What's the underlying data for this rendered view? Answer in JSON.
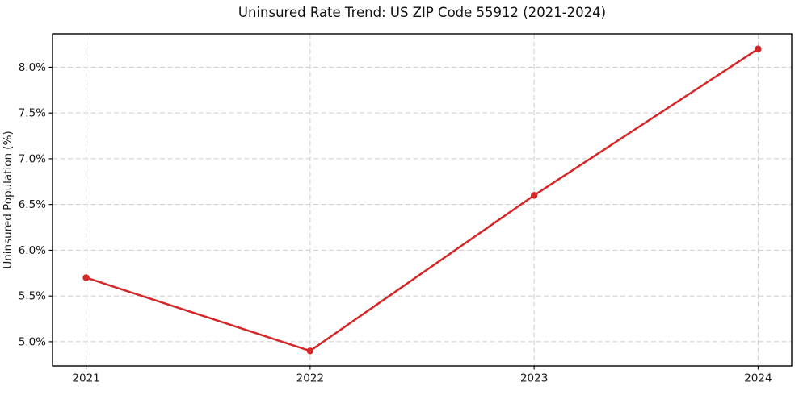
{
  "chart_data": {
    "type": "line",
    "title": "Uninsured Rate Trend: US ZIP Code 55912 (2021-2024)",
    "xlabel": "",
    "ylabel": "Uninsured Population (%)",
    "x": [
      2021,
      2022,
      2023,
      2024
    ],
    "series": [
      {
        "name": "Uninsured rate",
        "values": [
          5.7,
          4.9,
          6.6,
          8.2
        ],
        "color": "#d62728",
        "line_width": 2.5,
        "marker": "circle",
        "marker_radius": 4.2
      }
    ],
    "xtick_labels": [
      "2021",
      "2022",
      "2023",
      "2024"
    ],
    "ytick_values": [
      5.0,
      5.5,
      6.0,
      6.5,
      7.0,
      7.5,
      8.0
    ],
    "ytick_labels": [
      "5.0%",
      "5.5%",
      "6.0%",
      "6.5%",
      "7.0%",
      "7.5%",
      "8.0%"
    ],
    "xlim": [
      2020.85,
      2024.15
    ],
    "ylim": [
      4.735,
      8.365
    ],
    "grid": true,
    "grid_style": "dashed",
    "grid_color": "#cdcdcd",
    "axis_color": "#000000",
    "background_color": "#ffffff",
    "legend": "none"
  }
}
